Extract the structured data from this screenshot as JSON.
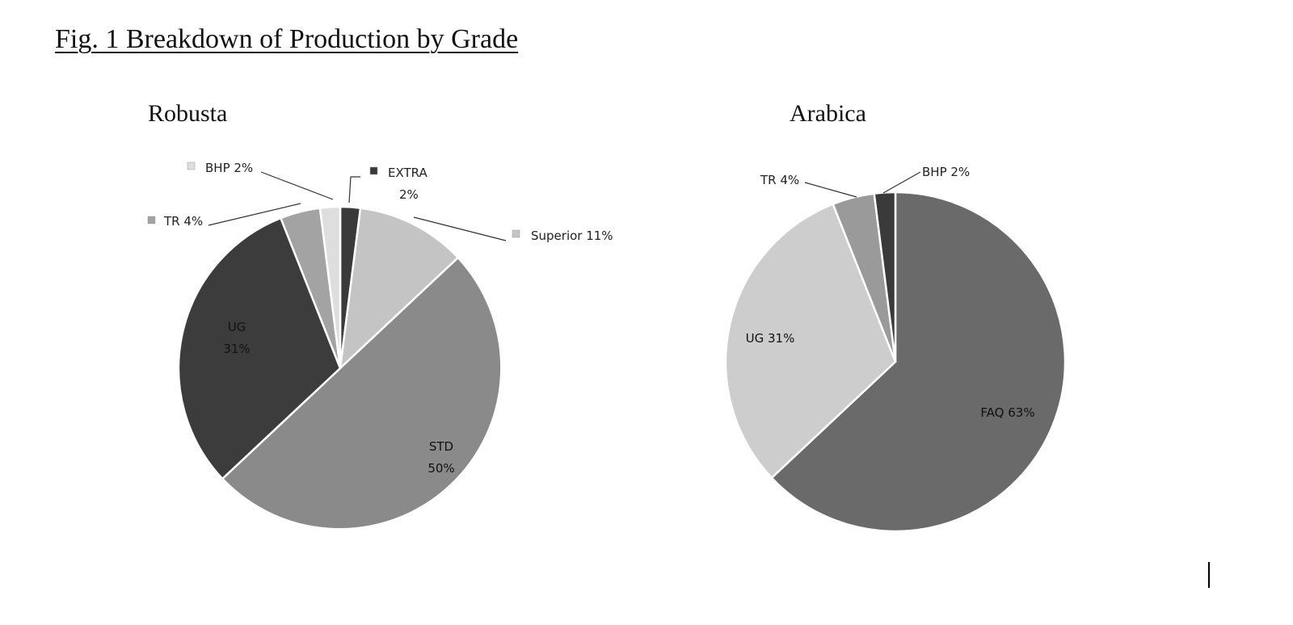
{
  "figure_title": "Fig. 1 Breakdown of Production by Grade",
  "chart_data": [
    {
      "type": "pie",
      "title": "Robusta",
      "slices": [
        {
          "name": "EXTRA",
          "value": 2,
          "label_lines": [
            "EXTRA",
            "2%"
          ],
          "color": "#3a3a3a"
        },
        {
          "name": "Superior",
          "value": 11,
          "label_lines": [
            "Superior 11%"
          ],
          "color": "#c4c4c4"
        },
        {
          "name": "STD",
          "value": 50,
          "label_lines": [
            "STD",
            "50%"
          ],
          "color": "#8a8a8a"
        },
        {
          "name": "UG",
          "value": 31,
          "label_lines": [
            "UG",
            "31%"
          ],
          "color": "#3c3c3c"
        },
        {
          "name": "TR",
          "value": 4,
          "label_lines": [
            "TR 4%"
          ],
          "color": "#a3a3a3"
        },
        {
          "name": "BHP",
          "value": 2,
          "label_lines": [
            "BHP 2%"
          ],
          "color": "#dedede"
        }
      ]
    },
    {
      "type": "pie",
      "title": "Arabica",
      "slices": [
        {
          "name": "FAQ",
          "value": 63,
          "label_lines": [
            "FAQ 63%"
          ],
          "color": "#6a6a6a"
        },
        {
          "name": "UG",
          "value": 31,
          "label_lines": [
            "UG 31%"
          ],
          "color": "#cdcdcd"
        },
        {
          "name": "TR",
          "value": 4,
          "label_lines": [
            "TR 4%"
          ],
          "color": "#9a9a9a"
        },
        {
          "name": "BHP",
          "value": 2,
          "label_lines": [
            "BHP 2%"
          ],
          "color": "#3a3a3a"
        }
      ]
    }
  ]
}
